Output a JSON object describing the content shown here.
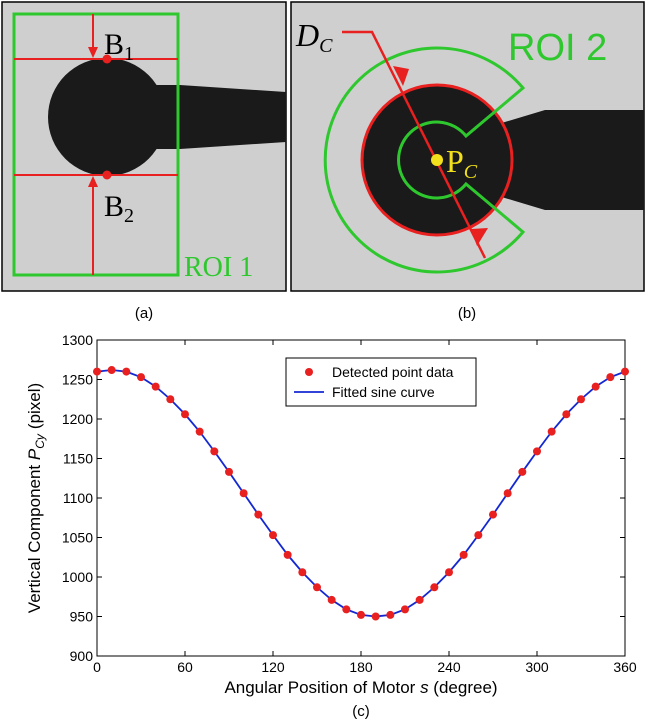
{
  "panels": {
    "a": {
      "caption": "(a)",
      "b1": "B",
      "b1_sub": "1",
      "b2": "B",
      "b2_sub": "2",
      "roi": "ROI 1"
    },
    "b": {
      "caption": "(b)",
      "d": "D",
      "d_sub": "C",
      "roi": "ROI 2",
      "p": "P",
      "p_sub": "C"
    },
    "c": {
      "caption": "(c)"
    }
  },
  "chart_data": {
    "type": "line",
    "xlabel": "Angular Position of Motor",
    "xlabel_symbol": "s",
    "xlabel_unit": "(degree)",
    "ylabel": "Vertical Component",
    "ylabel_symbol": "P",
    "ylabel_subscript": "Cy",
    "ylabel_unit": "(pixel)",
    "x": [
      0,
      10,
      20,
      30,
      40,
      50,
      60,
      70,
      80,
      90,
      100,
      110,
      120,
      130,
      140,
      150,
      160,
      170,
      180,
      190,
      200,
      210,
      220,
      230,
      240,
      250,
      260,
      270,
      280,
      290,
      300,
      310,
      320,
      330,
      340,
      350,
      360
    ],
    "series": [
      {
        "name": "Detected point data",
        "color": "#e8201f",
        "marker": "dot",
        "values": [
          1260,
          1262,
          1260,
          1253,
          1241,
          1225,
          1206,
          1184,
          1159,
          1133,
          1106,
          1079,
          1053,
          1028,
          1006,
          987,
          971,
          959,
          952,
          950,
          952,
          959,
          971,
          987,
          1006,
          1028,
          1053,
          1079,
          1106,
          1133,
          1159,
          1184,
          1206,
          1225,
          1241,
          1253,
          1260
        ]
      },
      {
        "name": "Fitted sine curve",
        "color": "#1428d2",
        "marker": "line",
        "values": [
          1260,
          1262,
          1260,
          1253,
          1241,
          1225,
          1206,
          1184,
          1159,
          1133,
          1106,
          1079,
          1053,
          1028,
          1006,
          987,
          971,
          959,
          952,
          950,
          952,
          959,
          971,
          987,
          1006,
          1028,
          1053,
          1079,
          1106,
          1133,
          1159,
          1184,
          1206,
          1225,
          1241,
          1253,
          1260
        ]
      }
    ],
    "xlim": [
      0,
      360
    ],
    "xticks": [
      0,
      60,
      120,
      180,
      240,
      300,
      360
    ],
    "ylim": [
      900,
      1300
    ],
    "yticks": [
      900,
      950,
      1000,
      1050,
      1100,
      1150,
      1200,
      1250,
      1300
    ],
    "grid": false,
    "legend": "upper center"
  }
}
